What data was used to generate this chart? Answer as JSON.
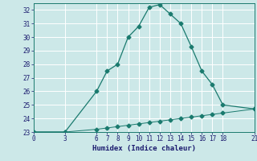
{
  "xlabel": "Humidex (Indice chaleur)",
  "bg_color": "#cce8e8",
  "grid_color": "#ffffff",
  "line_color": "#1a7a6e",
  "x_ticks": [
    0,
    3,
    6,
    7,
    8,
    9,
    10,
    11,
    12,
    13,
    14,
    15,
    16,
    17,
    18,
    21
  ],
  "ylim": [
    23,
    32.5
  ],
  "yticks": [
    23,
    24,
    25,
    26,
    27,
    28,
    29,
    30,
    31,
    32
  ],
  "xlim": [
    0,
    21
  ],
  "line1_x": [
    0,
    3,
    6,
    7,
    8,
    9,
    10,
    11,
    12,
    13,
    14,
    15,
    16,
    17,
    18,
    21
  ],
  "line1_y": [
    23.0,
    23.0,
    26.0,
    27.5,
    28.0,
    30.0,
    30.8,
    32.2,
    32.4,
    31.7,
    31.0,
    29.3,
    27.5,
    26.5,
    25.0,
    24.7
  ],
  "line2_x": [
    0,
    3,
    6,
    7,
    8,
    9,
    10,
    11,
    12,
    13,
    14,
    15,
    16,
    17,
    18,
    21
  ],
  "line2_y": [
    23.0,
    23.0,
    23.2,
    23.3,
    23.4,
    23.5,
    23.6,
    23.7,
    23.8,
    23.9,
    24.0,
    24.1,
    24.2,
    24.3,
    24.4,
    24.7
  ]
}
